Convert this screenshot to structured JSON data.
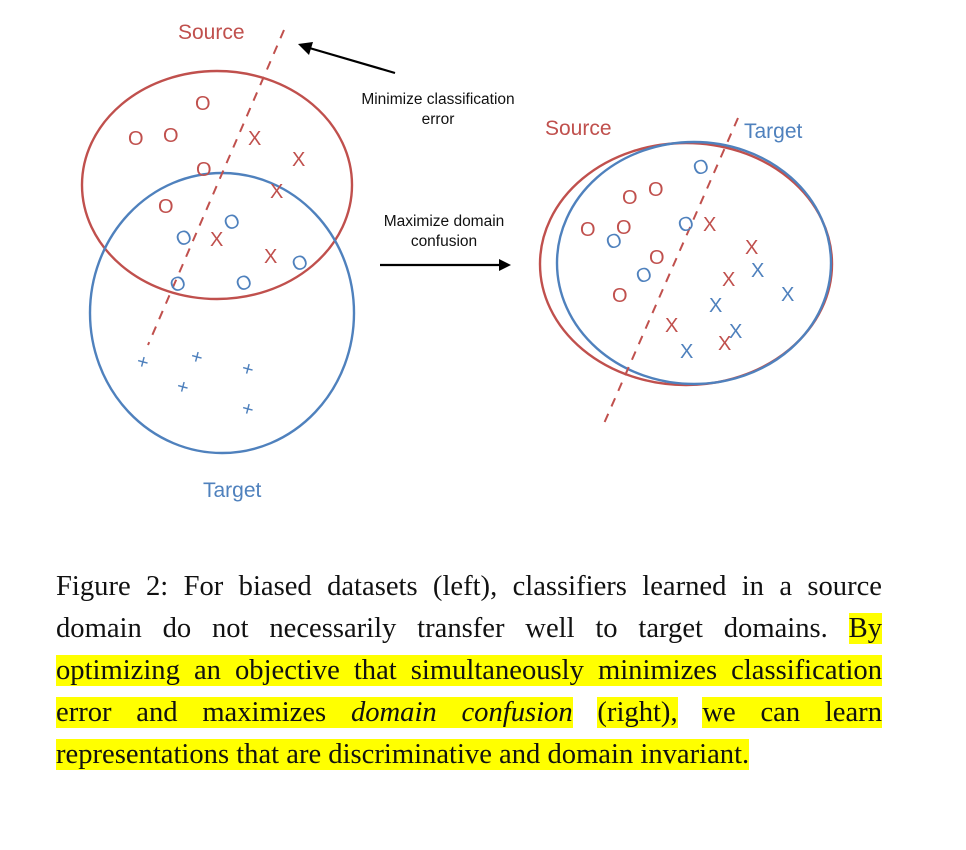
{
  "left_panel": {
    "source_label": "Source",
    "target_label": "Target",
    "source_marks": {
      "o": "O",
      "x": "X"
    },
    "target_marks": {
      "o": "O",
      "x": "+"
    }
  },
  "right_panel": {
    "source_label": "Source",
    "target_label": "Target",
    "source_marks": {
      "o": "O",
      "x": "X"
    },
    "target_marks": {
      "o": "O",
      "x": "X"
    }
  },
  "annotations": {
    "classification": [
      "Minimize classification",
      "error"
    ],
    "confusion": [
      "Maximize domain",
      "confusion"
    ]
  },
  "caption": {
    "prefix": "Figure 2: For biased datasets (left), classifiers learned in a source domain do not necessarily transfer well to target do­mains. ",
    "highlight_1": "By optimizing an objective that simultaneously min­imizes classification error and maximizes ",
    "highlight_1_emph": "domain confusion",
    "space": " ",
    "highlight_2": "(right),",
    "between": " ",
    "highlight_3": "we can learn representations that are discriminative and domain invariant."
  },
  "colors": {
    "source": "#c0504d",
    "target": "#4f81bd"
  }
}
